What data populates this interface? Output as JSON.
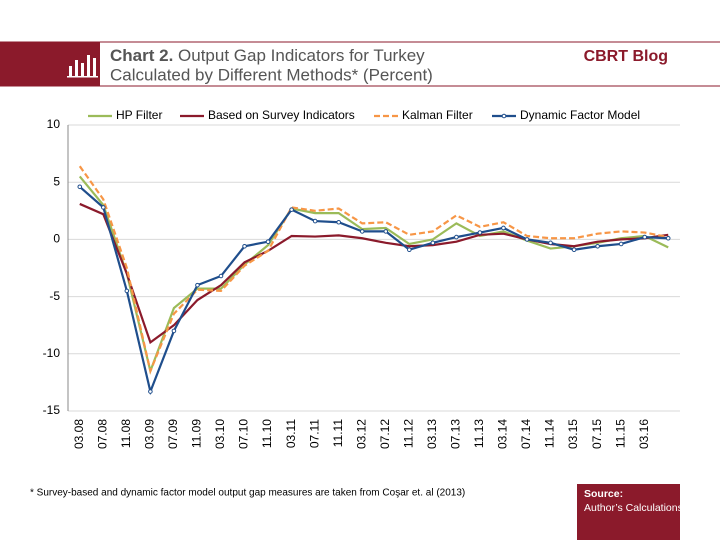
{
  "header": {
    "chart_label": "Chart 2.",
    "title_lines": [
      "Output Gap Indicators for Turkey",
      "Calculated by Different Methods* (Percent)"
    ],
    "brand": "CBRT Blog"
  },
  "footnote": "* Survey-based and dynamic factor model output gap measures are taken from Coşar et. al (2013)",
  "source": {
    "label": "Source:",
    "text": "Author’s Calculations"
  },
  "chart_data": {
    "type": "line",
    "categories": [
      "03.08",
      "07.08",
      "11.08",
      "03.09",
      "07.09",
      "11.09",
      "03.10",
      "07.10",
      "11.10",
      "03.11",
      "07.11",
      "11.11",
      "03.12",
      "07.12",
      "11.12",
      "03.13",
      "07.13",
      "11.13",
      "03.14",
      "07.14",
      "11.14",
      "03.15",
      "07.15",
      "11.15",
      "03.16",
      null
    ],
    "series": [
      {
        "name": "HP Filter",
        "color": "#9bbb59",
        "dash": false,
        "markers": false,
        "values": [
          5.5,
          3,
          -3,
          -11.5,
          -6,
          -4.3,
          -4.3,
          -2.2,
          -0.5,
          2.7,
          2.3,
          2.3,
          0.9,
          1.0,
          -0.4,
          0,
          1.4,
          0.3,
          0.7,
          -0.1,
          -0.8,
          -0.6,
          -0.3,
          0.1,
          0.3,
          -0.7
        ]
      },
      {
        "name": "Based on Survey Indicators",
        "color": "#8b1a2b",
        "dash": false,
        "markers": false,
        "values": [
          3.1,
          2.2,
          -3,
          -9,
          -7.5,
          -5.3,
          -4,
          -2,
          -1,
          0.3,
          0.25,
          0.35,
          0.1,
          -0.3,
          -0.6,
          -0.5,
          -0.2,
          0.4,
          0.5,
          0,
          -0.4,
          -0.6,
          -0.2,
          0,
          0.1,
          0.4
        ]
      },
      {
        "name": "Kalman Filter",
        "color": "#f79646",
        "dash": true,
        "markers": false,
        "values": [
          6.4,
          3.5,
          -2.5,
          -11.5,
          -6.5,
          -4.4,
          -4.5,
          -2.3,
          -1,
          2.8,
          2.5,
          2.7,
          1.4,
          1.5,
          0.4,
          0.7,
          2.1,
          1.1,
          1.5,
          0.3,
          0.1,
          0.1,
          0.5,
          0.7,
          0.6,
          0.2
        ]
      },
      {
        "name": "Dynamic Factor Model",
        "color": "#1f4e8c",
        "dash": false,
        "markers": true,
        "values": [
          4.6,
          2.8,
          -4.5,
          -13.3,
          -8,
          -4,
          -3.2,
          -0.6,
          -0.2,
          2.6,
          1.6,
          1.5,
          0.7,
          0.7,
          -0.9,
          -0.3,
          0.2,
          0.6,
          1.0,
          0,
          -0.3,
          -0.9,
          -0.6,
          -0.4,
          0.2,
          0.1
        ]
      }
    ],
    "ylim": [
      -15,
      10
    ],
    "yticks": [
      10,
      5,
      0,
      -5,
      -10,
      -15
    ],
    "grid": true,
    "legend": "top"
  }
}
